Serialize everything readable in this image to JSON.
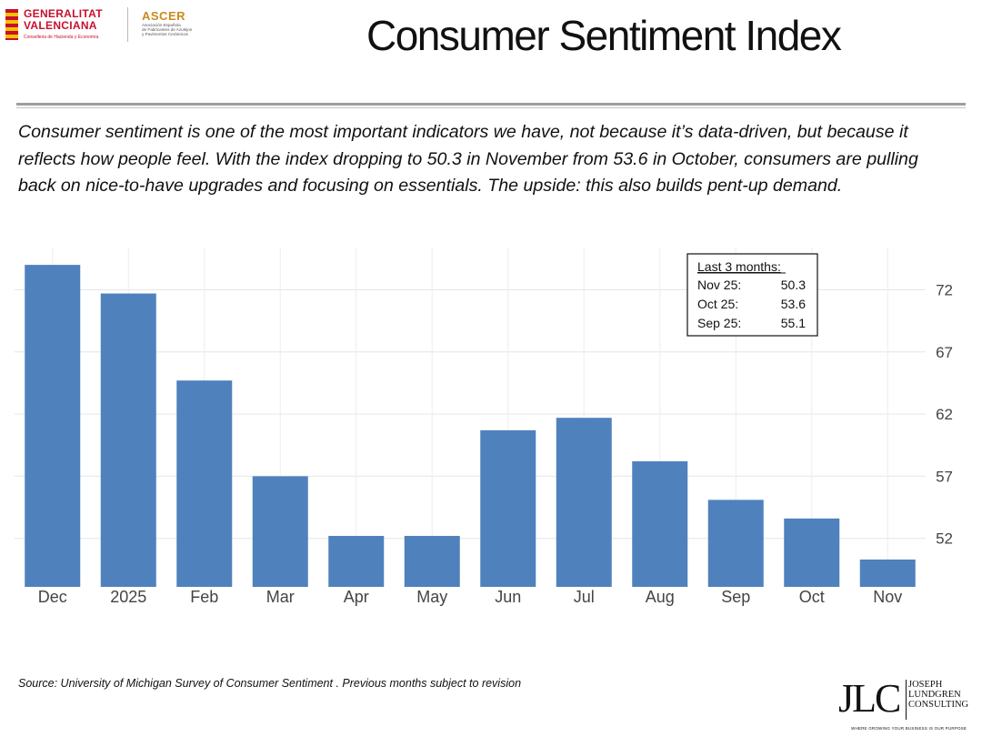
{
  "header": {
    "logo_gv": {
      "line1": "GENERALITAT",
      "line2": "VALENCIANA",
      "line3": "Conselleria de Hacienda y Economía"
    },
    "logo_ascer": {
      "title": "ASCER",
      "sub1": "Asociación Española",
      "sub2": "de Fabricantes de Azulejos",
      "sub3": "y Pavimentos Cerámicos"
    },
    "title": "Consumer Sentiment Index"
  },
  "description": "Consumer sentiment is one of the most important indicators we have, not because it’s data-driven, but because it reflects how people feel. With the index dropping to 50.3 in November from 53.6 in October, consumers are pulling back on nice-to-have upgrades and focusing on essentials. The upside: this also builds pent-up demand.",
  "chart_data": {
    "type": "bar",
    "title": "",
    "xlabel": "",
    "ylabel": "",
    "categories": [
      "Dec",
      "2025",
      "Feb",
      "Mar",
      "Apr",
      "May",
      "Jun",
      "Jul",
      "Aug",
      "Sep",
      "Oct",
      "Nov"
    ],
    "values": [
      74.0,
      71.7,
      64.7,
      57.0,
      52.2,
      52.2,
      60.7,
      61.7,
      58.2,
      55.1,
      53.6,
      50.3
    ],
    "yticks": [
      52,
      57,
      62,
      67,
      72
    ],
    "ylim": [
      48.1,
      75.4
    ],
    "y_axis_side": "right",
    "grid": true,
    "bar_color": "#4f81bd",
    "annotation": {
      "heading": "Last 3 months:",
      "rows": [
        {
          "label": "Nov 25:",
          "value": "50.3"
        },
        {
          "label": "Oct 25:",
          "value": "53.6"
        },
        {
          "label": "Sep 25:",
          "value": "55.1"
        }
      ]
    }
  },
  "source": "Source: University of Michigan Survey of Consumer Sentiment .  Previous months subject to revision",
  "footer_logo": {
    "mark": "JLC",
    "name1": "JOSEPH",
    "name2": "LUNDGREN",
    "name3": "CONSULTING",
    "tagline": "WHERE GROWING YOUR BUSINESS IS OUR PURPOSE"
  }
}
